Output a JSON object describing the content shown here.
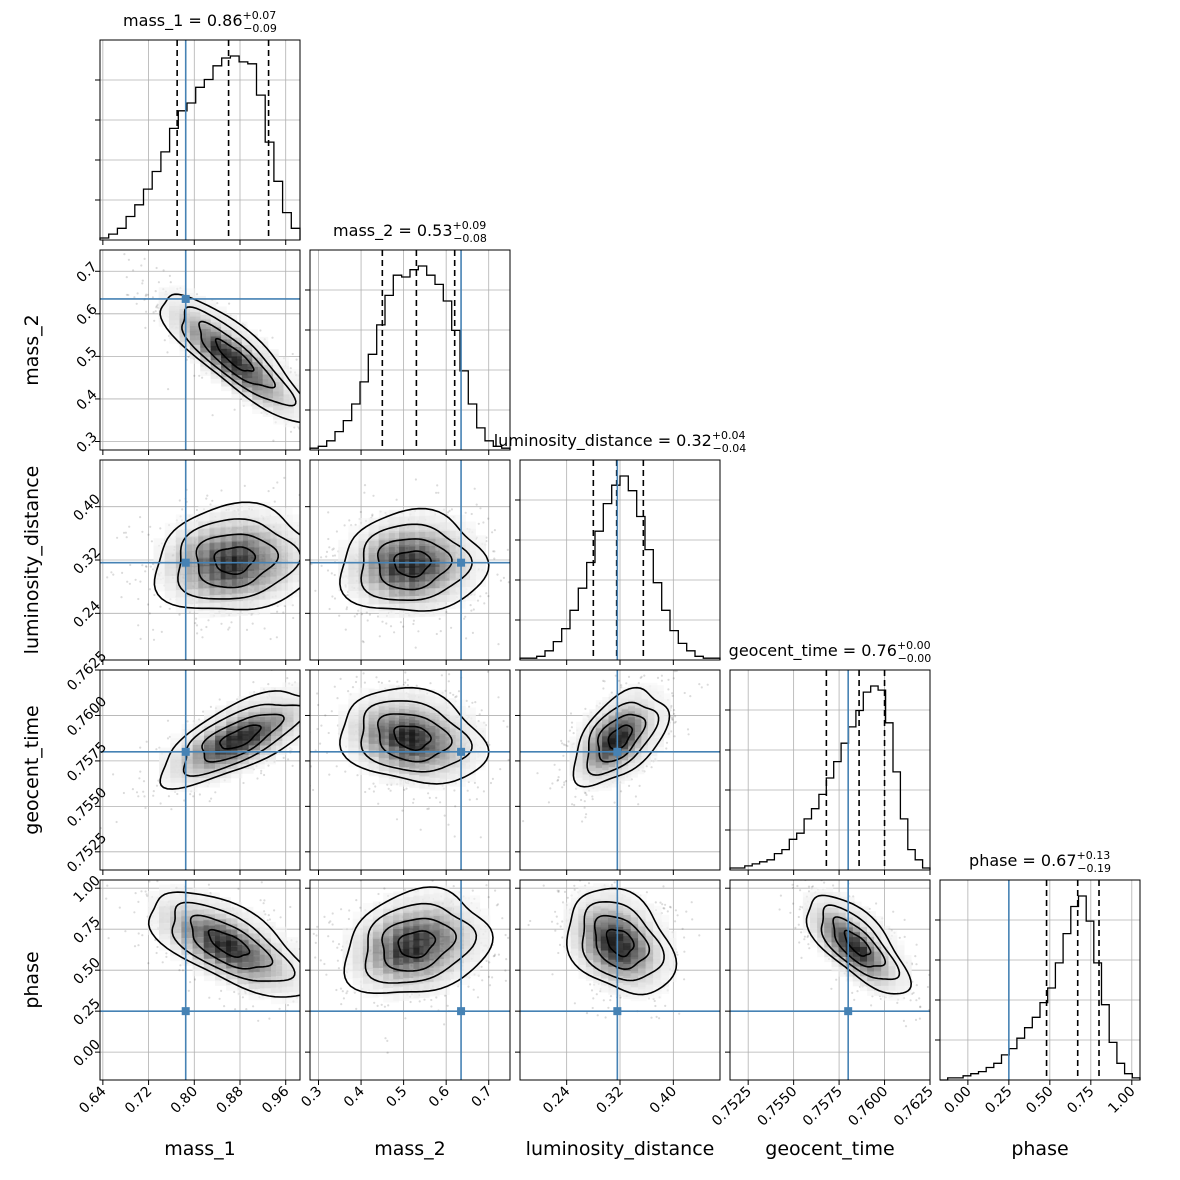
{
  "chart_data": {
    "type": "corner",
    "parameters": [
      "mass_1",
      "mass_2",
      "luminosity_distance",
      "geocent_time",
      "phase"
    ],
    "truths": [
      0.785,
      0.635,
      0.316,
      0.758,
      0.25
    ],
    "truth_color": "#4682b4",
    "grid": true,
    "axes": [
      {
        "name": "mass_1",
        "label": "mass_1",
        "range": [
          0.635,
          0.985
        ],
        "ticks": [
          0.64,
          0.72,
          0.8,
          0.88,
          0.96
        ],
        "tick_labels": [
          "0.64",
          "0.72",
          "0.80",
          "0.88",
          "0.96"
        ]
      },
      {
        "name": "mass_2",
        "label": "mass_2",
        "range": [
          0.28,
          0.75
        ],
        "ticks": [
          0.3,
          0.4,
          0.5,
          0.6,
          0.7
        ],
        "tick_labels": [
          "0.3",
          "0.4",
          "0.5",
          "0.6",
          "0.7"
        ]
      },
      {
        "name": "luminosity_distance",
        "label": "luminosity_distance",
        "range": [
          0.17,
          0.47
        ],
        "ticks": [
          0.24,
          0.32,
          0.4
        ],
        "tick_labels": [
          "0.24",
          "0.32",
          "0.40"
        ]
      },
      {
        "name": "geocent_time",
        "label": "geocent_time",
        "range": [
          0.7515,
          0.7625
        ],
        "ticks": [
          0.7525,
          0.755,
          0.7575,
          0.76,
          0.7625
        ],
        "tick_labels": [
          "0.7525",
          "0.7550",
          "0.7575",
          "0.7600",
          "0.7625"
        ]
      },
      {
        "name": "phase",
        "label": "phase",
        "range": [
          -0.17,
          1.05
        ],
        "ticks": [
          0.0,
          0.25,
          0.5,
          0.75,
          1.0
        ],
        "tick_labels": [
          "0.00",
          "0.25",
          "0.50",
          "0.75",
          "1.00"
        ]
      }
    ],
    "diagonal": [
      {
        "param": "mass_1",
        "title": "mass_1 = 0.86",
        "sup": "+0.07",
        "sub": "−0.09",
        "quantiles": [
          0.77,
          0.86,
          0.93
        ],
        "bins_range": [
          0.635,
          0.985
        ],
        "counts": [
          1,
          3,
          6,
          12,
          18,
          26,
          35,
          45,
          57,
          66,
          70,
          78,
          82,
          89,
          93,
          94,
          91,
          90,
          74,
          50,
          30,
          14,
          6
        ]
      },
      {
        "param": "mass_2",
        "title": "mass_2 = 0.53",
        "sup": "+0.09",
        "sub": "−0.08",
        "quantiles": [
          0.45,
          0.53,
          0.62
        ],
        "bins_range": [
          0.28,
          0.75
        ],
        "counts": [
          1,
          2,
          5,
          10,
          16,
          25,
          37,
          52,
          68,
          84,
          95,
          94,
          98,
          100,
          95,
          90,
          81,
          65,
          43,
          25,
          12,
          5,
          2,
          1
        ]
      },
      {
        "param": "luminosity_distance",
        "title": "luminosity_distance = 0.32",
        "sup": "+0.04",
        "sub": "−0.04",
        "quantiles": [
          0.28,
          0.315,
          0.355
        ],
        "bins_range": [
          0.17,
          0.47
        ],
        "counts": [
          1,
          1,
          2,
          5,
          10,
          17,
          27,
          39,
          53,
          70,
          85,
          95,
          100,
          92,
          78,
          60,
          42,
          27,
          16,
          9,
          5,
          2,
          1,
          1
        ]
      },
      {
        "param": "geocent_time",
        "title": "geocent_time = 0.76",
        "sup": "+0.00",
        "sub": "−0.00",
        "quantiles": [
          0.7568,
          0.7586,
          0.76
        ],
        "bins_range": [
          0.7515,
          0.7625
        ],
        "counts": [
          1,
          1,
          2,
          3,
          4,
          5,
          8,
          10,
          15,
          18,
          25,
          30,
          37,
          45,
          53,
          62,
          70,
          78,
          87,
          90,
          88,
          72,
          48,
          25,
          10,
          5,
          1
        ]
      },
      {
        "param": "phase",
        "title": "phase = 0.67",
        "sup": "+0.13",
        "sub": "−0.19",
        "quantiles": [
          0.48,
          0.67,
          0.8
        ],
        "bins_range": [
          -0.17,
          1.05
        ],
        "counts": [
          0,
          1,
          1,
          2,
          3,
          4,
          6,
          8,
          12,
          15,
          20,
          25,
          30,
          37,
          44,
          56,
          70,
          83,
          88,
          76,
          56,
          36,
          18,
          8,
          3,
          1
        ]
      }
    ],
    "pairs": [
      {
        "x": "mass_1",
        "y": "mass_2",
        "center": [
          0.87,
          0.5
        ],
        "sigma": [
          0.065,
          0.075
        ],
        "rho": -0.85
      },
      {
        "x": "mass_1",
        "y": "luminosity_distance",
        "center": [
          0.87,
          0.32
        ],
        "sigma": [
          0.07,
          0.04
        ],
        "rho": 0.1
      },
      {
        "x": "mass_2",
        "y": "luminosity_distance",
        "center": [
          0.52,
          0.315
        ],
        "sigma": [
          0.085,
          0.038
        ],
        "rho": 0.05
      },
      {
        "x": "mass_1",
        "y": "geocent_time",
        "center": [
          0.88,
          0.7588
        ],
        "sigma": [
          0.07,
          0.0013
        ],
        "rho": 0.7
      },
      {
        "x": "mass_2",
        "y": "geocent_time",
        "center": [
          0.52,
          0.7588
        ],
        "sigma": [
          0.085,
          0.0013
        ],
        "rho": -0.2
      },
      {
        "x": "luminosity_distance",
        "y": "geocent_time",
        "center": [
          0.32,
          0.7588
        ],
        "sigma": [
          0.035,
          0.0013
        ],
        "rho": 0.5
      },
      {
        "x": "mass_1",
        "y": "phase",
        "center": [
          0.86,
          0.66
        ],
        "sigma": [
          0.07,
          0.16
        ],
        "rho": -0.65
      },
      {
        "x": "mass_2",
        "y": "phase",
        "center": [
          0.53,
          0.66
        ],
        "sigma": [
          0.085,
          0.16
        ],
        "rho": 0.2
      },
      {
        "x": "luminosity_distance",
        "y": "phase",
        "center": [
          0.32,
          0.67
        ],
        "sigma": [
          0.04,
          0.16
        ],
        "rho": -0.3
      },
      {
        "x": "geocent_time",
        "y": "phase",
        "center": [
          0.7585,
          0.66
        ],
        "sigma": [
          0.0014,
          0.15
        ],
        "rho": -0.7
      }
    ]
  }
}
